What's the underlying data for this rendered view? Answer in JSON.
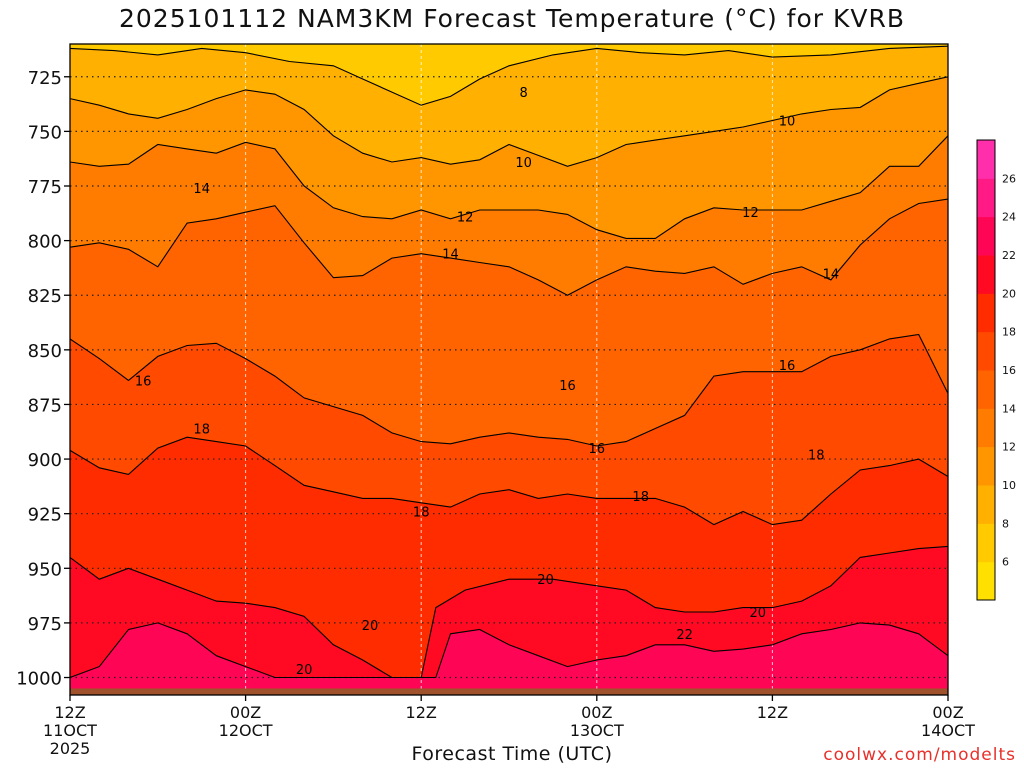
{
  "chart_data": {
    "type": "heatmap",
    "title": "2025101112 NAM3KM Forecast Temperature (°C) for KVRB",
    "xlabel": "Forecast Time (UTC)",
    "ylabel": "",
    "x_ticks": [
      {
        "label": "12Z",
        "sub": "11OCT",
        "sub2": "2025",
        "hour": 0
      },
      {
        "label": "00Z",
        "sub": "12OCT",
        "sub2": "",
        "hour": 12
      },
      {
        "label": "12Z",
        "sub": "",
        "sub2": "",
        "hour": 24
      },
      {
        "label": "00Z",
        "sub": "13OCT",
        "sub2": "",
        "hour": 36
      },
      {
        "label": "12Z",
        "sub": "",
        "sub2": "",
        "hour": 48
      },
      {
        "label": "00Z",
        "sub": "14OCT",
        "sub2": "",
        "hour": 60
      }
    ],
    "xlim": [
      0,
      60
    ],
    "y_ticks": [
      725,
      750,
      775,
      800,
      825,
      850,
      875,
      900,
      925,
      950,
      975,
      1000
    ],
    "ylim": [
      1008,
      710
    ],
    "surface_pressure": 1005,
    "colorbar_ticks": [
      6,
      8,
      10,
      12,
      14,
      16,
      18,
      20,
      22,
      24,
      26
    ],
    "colorbar_range": [
      4,
      28
    ],
    "colorbar_colors": [
      "#ffe000",
      "#ffca00",
      "#ffb000",
      "#ff9600",
      "#ff7c00",
      "#ff6400",
      "#ff4a00",
      "#ff2c00",
      "#ff0a22",
      "#ff0555",
      "#ff1a85",
      "#ff2eaa"
    ],
    "contour_levels": [
      8,
      10,
      12,
      14,
      16,
      18,
      20,
      22
    ],
    "contour_pressures": {
      "8": [
        [
          0,
          712
        ],
        [
          3,
          713
        ],
        [
          6,
          715
        ],
        [
          9,
          712
        ],
        [
          12,
          714
        ],
        [
          15,
          718
        ],
        [
          18,
          720
        ],
        [
          20,
          726
        ],
        [
          22,
          732
        ],
        [
          24,
          738
        ],
        [
          26,
          734
        ],
        [
          28,
          726
        ],
        [
          30,
          720
        ],
        [
          33,
          715
        ],
        [
          36,
          712
        ],
        [
          39,
          714
        ],
        [
          42,
          715
        ],
        [
          45,
          713
        ],
        [
          48,
          716
        ],
        [
          52,
          715
        ],
        [
          56,
          712
        ],
        [
          60,
          711
        ]
      ],
      "10": [
        [
          0,
          735
        ],
        [
          2,
          738
        ],
        [
          4,
          742
        ],
        [
          6,
          744
        ],
        [
          8,
          740
        ],
        [
          10,
          735
        ],
        [
          12,
          731
        ],
        [
          14,
          733
        ],
        [
          16,
          740
        ],
        [
          18,
          752
        ],
        [
          20,
          760
        ],
        [
          22,
          764
        ],
        [
          24,
          762
        ],
        [
          26,
          765
        ],
        [
          28,
          763
        ],
        [
          30,
          756
        ],
        [
          32,
          761
        ],
        [
          34,
          766
        ],
        [
          36,
          762
        ],
        [
          38,
          756
        ],
        [
          40,
          754
        ],
        [
          42,
          752
        ],
        [
          44,
          750
        ],
        [
          46,
          748
        ],
        [
          48,
          745
        ],
        [
          50,
          742
        ],
        [
          52,
          740
        ],
        [
          54,
          739
        ],
        [
          56,
          731
        ],
        [
          58,
          728
        ],
        [
          60,
          725
        ]
      ],
      "12": [
        [
          0,
          764
        ],
        [
          2,
          766
        ],
        [
          4,
          765
        ],
        [
          6,
          756
        ],
        [
          8,
          758
        ],
        [
          10,
          760
        ],
        [
          12,
          755
        ],
        [
          14,
          758
        ],
        [
          16,
          775
        ],
        [
          18,
          785
        ],
        [
          20,
          789
        ],
        [
          22,
          790
        ],
        [
          24,
          786
        ],
        [
          26,
          790
        ],
        [
          28,
          786
        ],
        [
          30,
          786
        ],
        [
          32,
          786
        ],
        [
          34,
          788
        ],
        [
          36,
          795
        ],
        [
          38,
          799
        ],
        [
          40,
          799
        ],
        [
          42,
          790
        ],
        [
          44,
          785
        ],
        [
          46,
          786
        ],
        [
          48,
          786
        ],
        [
          50,
          786
        ],
        [
          52,
          782
        ],
        [
          54,
          778
        ],
        [
          56,
          766
        ],
        [
          58,
          766
        ],
        [
          60,
          752
        ]
      ],
      "14": [
        [
          0,
          803
        ],
        [
          2,
          801
        ],
        [
          4,
          804
        ],
        [
          6,
          812
        ],
        [
          8,
          792
        ],
        [
          10,
          790
        ],
        [
          12,
          787
        ],
        [
          14,
          784
        ],
        [
          16,
          801
        ],
        [
          18,
          817
        ],
        [
          20,
          816
        ],
        [
          22,
          808
        ],
        [
          24,
          806
        ],
        [
          26,
          808
        ],
        [
          28,
          810
        ],
        [
          30,
          812
        ],
        [
          32,
          818
        ],
        [
          34,
          825
        ],
        [
          36,
          818
        ],
        [
          38,
          812
        ],
        [
          40,
          814
        ],
        [
          42,
          815
        ],
        [
          44,
          812
        ],
        [
          46,
          820
        ],
        [
          48,
          815
        ],
        [
          50,
          812
        ],
        [
          52,
          818
        ],
        [
          54,
          802
        ],
        [
          56,
          790
        ],
        [
          58,
          783
        ],
        [
          60,
          781
        ]
      ],
      "16": [
        [
          0,
          845
        ],
        [
          2,
          854
        ],
        [
          4,
          864
        ],
        [
          6,
          853
        ],
        [
          8,
          848
        ],
        [
          10,
          847
        ],
        [
          12,
          854
        ],
        [
          14,
          862
        ],
        [
          16,
          872
        ],
        [
          18,
          876
        ],
        [
          20,
          880
        ],
        [
          22,
          888
        ],
        [
          24,
          892
        ],
        [
          26,
          893
        ],
        [
          28,
          890
        ],
        [
          30,
          888
        ],
        [
          32,
          890
        ],
        [
          34,
          891
        ],
        [
          36,
          894
        ],
        [
          38,
          892
        ],
        [
          40,
          886
        ],
        [
          42,
          880
        ],
        [
          44,
          862
        ],
        [
          46,
          860
        ],
        [
          48,
          860
        ],
        [
          50,
          860
        ],
        [
          52,
          853
        ],
        [
          54,
          850
        ],
        [
          56,
          845
        ],
        [
          58,
          843
        ],
        [
          60,
          870
        ]
      ],
      "18": [
        [
          0,
          896
        ],
        [
          2,
          904
        ],
        [
          4,
          907
        ],
        [
          6,
          895
        ],
        [
          8,
          890
        ],
        [
          10,
          892
        ],
        [
          12,
          894
        ],
        [
          14,
          903
        ],
        [
          16,
          912
        ],
        [
          18,
          915
        ],
        [
          20,
          918
        ],
        [
          22,
          918
        ],
        [
          24,
          920
        ],
        [
          26,
          922
        ],
        [
          28,
          916
        ],
        [
          30,
          914
        ],
        [
          32,
          918
        ],
        [
          34,
          916
        ],
        [
          36,
          918
        ],
        [
          38,
          918
        ],
        [
          40,
          918
        ],
        [
          42,
          922
        ],
        [
          44,
          930
        ],
        [
          46,
          924
        ],
        [
          48,
          930
        ],
        [
          50,
          928
        ],
        [
          52,
          916
        ],
        [
          54,
          905
        ],
        [
          56,
          903
        ],
        [
          58,
          900
        ],
        [
          60,
          908
        ]
      ],
      "20": [
        [
          0,
          945
        ],
        [
          2,
          955
        ],
        [
          4,
          950
        ],
        [
          6,
          955
        ],
        [
          8,
          960
        ],
        [
          10,
          965
        ],
        [
          12,
          966
        ],
        [
          14,
          968
        ],
        [
          16,
          972
        ],
        [
          18,
          985
        ],
        [
          20,
          992
        ],
        [
          22,
          1000
        ],
        [
          24,
          1000
        ],
        [
          25,
          968
        ],
        [
          27,
          960
        ],
        [
          30,
          955
        ],
        [
          33,
          955
        ],
        [
          36,
          958
        ],
        [
          38,
          960
        ],
        [
          40,
          968
        ],
        [
          42,
          970
        ],
        [
          44,
          970
        ],
        [
          46,
          968
        ],
        [
          48,
          968
        ],
        [
          50,
          965
        ],
        [
          52,
          958
        ],
        [
          54,
          945
        ],
        [
          56,
          943
        ],
        [
          58,
          941
        ],
        [
          60,
          940
        ]
      ],
      "22": [
        [
          0,
          1000
        ],
        [
          2,
          995
        ],
        [
          4,
          978
        ],
        [
          6,
          975
        ],
        [
          8,
          980
        ],
        [
          10,
          990
        ],
        [
          12,
          995
        ],
        [
          14,
          1000
        ],
        [
          25,
          1000
        ],
        [
          26,
          980
        ],
        [
          28,
          978
        ],
        [
          30,
          985
        ],
        [
          32,
          990
        ],
        [
          34,
          995
        ],
        [
          36,
          992
        ],
        [
          38,
          990
        ],
        [
          40,
          985
        ],
        [
          42,
          985
        ],
        [
          44,
          988
        ],
        [
          46,
          987
        ],
        [
          48,
          985
        ],
        [
          50,
          980
        ],
        [
          52,
          978
        ],
        [
          54,
          975
        ],
        [
          56,
          976
        ],
        [
          58,
          980
        ],
        [
          60,
          990
        ]
      ]
    },
    "contour_labels": [
      {
        "text": "8",
        "hour": 31.0,
        "p": 732
      },
      {
        "text": "10",
        "hour": 31.0,
        "p": 764
      },
      {
        "text": "10",
        "hour": 49.0,
        "p": 745
      },
      {
        "text": "12",
        "hour": 27.0,
        "p": 789
      },
      {
        "text": "12",
        "hour": 46.5,
        "p": 787
      },
      {
        "text": "14",
        "hour": 9.0,
        "p": 776
      },
      {
        "text": "14",
        "hour": 26.0,
        "p": 806
      },
      {
        "text": "14",
        "hour": 52.0,
        "p": 815
      },
      {
        "text": "16",
        "hour": 5.0,
        "p": 864
      },
      {
        "text": "16",
        "hour": 34.0,
        "p": 866
      },
      {
        "text": "16",
        "hour": 36.0,
        "p": 895
      },
      {
        "text": "16",
        "hour": 49.0,
        "p": 857
      },
      {
        "text": "18",
        "hour": 9.0,
        "p": 886
      },
      {
        "text": "18",
        "hour": 24.0,
        "p": 924
      },
      {
        "text": "18",
        "hour": 39.0,
        "p": 917
      },
      {
        "text": "18",
        "hour": 51.0,
        "p": 898
      },
      {
        "text": "20",
        "hour": 20.5,
        "p": 976
      },
      {
        "text": "20",
        "hour": 16.0,
        "p": 996
      },
      {
        "text": "20",
        "hour": 32.5,
        "p": 955
      },
      {
        "text": "20",
        "hour": 47.0,
        "p": 970
      },
      {
        "text": "22",
        "hour": 42.0,
        "p": 980
      }
    ],
    "legend": "colorbar right"
  },
  "credit": "coolwx.com/modelts"
}
